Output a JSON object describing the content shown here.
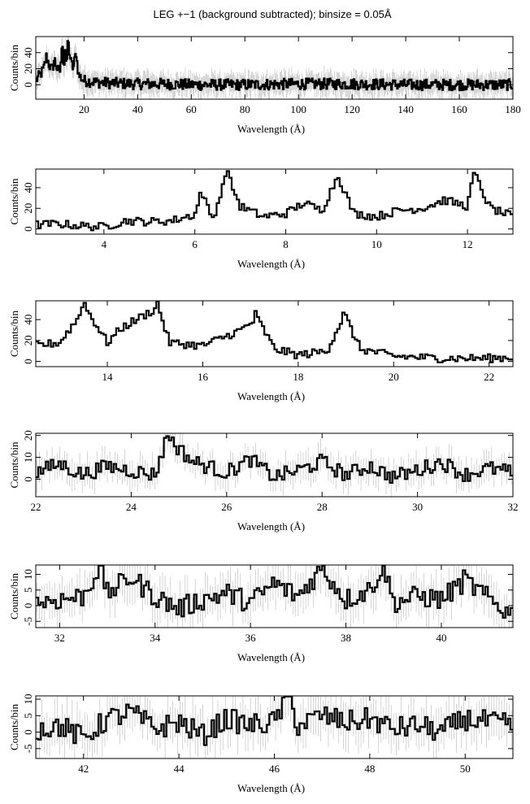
{
  "figure": {
    "title": "LEG +−1 (background subtracted); binsize = 0.05Å"
  },
  "chart_data": [
    {
      "type": "line",
      "panel": 1,
      "xlabel": "Wavelength (Å)",
      "ylabel": "Counts/bin",
      "xlim": [
        2,
        180
      ],
      "ylim": [
        -18,
        60
      ],
      "xticks": [
        20,
        40,
        60,
        80,
        100,
        120,
        140,
        160,
        180
      ],
      "yticks": [
        0,
        20,
        40
      ],
      "style": "step histogram with gray error bars",
      "series": [
        {
          "x": [
            2,
            4,
            5,
            6,
            7,
            8,
            9,
            10,
            11,
            12,
            12.5,
            13,
            13.5,
            14,
            15,
            16,
            17,
            18,
            20,
            25,
            30,
            40,
            50,
            60,
            80,
            100,
            120,
            140,
            160,
            170,
            175,
            178,
            180
          ],
          "values": [
            5,
            14,
            20,
            35,
            25,
            18,
            30,
            20,
            15,
            52,
            20,
            45,
            18,
            55,
            30,
            20,
            40,
            12,
            5,
            3,
            2,
            1,
            1,
            0,
            0,
            1,
            1,
            0,
            0,
            0,
            0,
            0,
            0
          ]
        }
      ]
    },
    {
      "type": "line",
      "panel": 2,
      "xlabel": "Wavelength (Å)",
      "ylabel": "Counts/bin",
      "xlim": [
        2.5,
        13
      ],
      "ylim": [
        -5,
        58
      ],
      "xticks": [
        4,
        6,
        8,
        10,
        12
      ],
      "yticks": [
        0,
        20,
        40
      ],
      "style": "step histogram",
      "series": [
        {
          "x": [
            2.5,
            3,
            3.5,
            4,
            4.5,
            5,
            5.5,
            6,
            6.15,
            6.4,
            6.65,
            6.7,
            7,
            7.5,
            8,
            8.4,
            8.8,
            9.15,
            9.5,
            10,
            10.5,
            11,
            11.5,
            12,
            12.15,
            12.5,
            13
          ],
          "values": [
            4,
            5,
            3,
            2,
            8,
            7,
            8,
            14,
            34,
            10,
            45,
            55,
            22,
            12,
            15,
            25,
            18,
            52,
            15,
            12,
            18,
            20,
            28,
            22,
            54,
            20,
            12
          ]
        }
      ]
    },
    {
      "type": "line",
      "panel": 3,
      "xlabel": "Wavelength (Å)",
      "ylabel": "Counts/bin",
      "xlim": [
        12.5,
        22.5
      ],
      "ylim": [
        -5,
        58
      ],
      "xticks": [
        14,
        16,
        18,
        20,
        22
      ],
      "yticks": [
        0,
        20,
        40
      ],
      "style": "step histogram",
      "series": [
        {
          "x": [
            12.5,
            13,
            13.45,
            13.5,
            14,
            14.3,
            15,
            15.05,
            15.3,
            16,
            16.8,
            17.05,
            17.1,
            17.5,
            18,
            18.6,
            18.97,
            19.3,
            20,
            21,
            22,
            22.5
          ],
          "values": [
            15,
            18,
            45,
            55,
            18,
            32,
            50,
            56,
            18,
            15,
            30,
            38,
            45,
            12,
            6,
            10,
            45,
            12,
            5,
            3,
            3,
            4
          ]
        }
      ]
    },
    {
      "type": "line",
      "panel": 4,
      "xlabel": "Wavelength (Å)",
      "ylabel": "Counts/bin",
      "xlim": [
        22,
        32
      ],
      "ylim": [
        -8,
        21
      ],
      "xticks": [
        22,
        24,
        26,
        28,
        30,
        32
      ],
      "yticks": [
        0,
        10,
        20
      ],
      "style": "step histogram with gray error bars",
      "series": [
        {
          "x": [
            22,
            22.5,
            23,
            23.5,
            24,
            24.5,
            24.78,
            24.9,
            25.3,
            26,
            26.5,
            27,
            27.5,
            28,
            28.5,
            29,
            29.5,
            30,
            30.5,
            31,
            31.5,
            32
          ],
          "values": [
            3,
            7,
            2,
            6,
            4,
            2,
            21,
            16,
            8,
            3,
            9,
            1,
            4,
            8,
            2,
            6,
            1,
            4,
            8,
            2,
            5,
            3
          ]
        }
      ]
    },
    {
      "type": "line",
      "panel": 5,
      "xlabel": "Wavelength (Å)",
      "ylabel": "Counts/bin",
      "xlim": [
        31.5,
        41.5
      ],
      "ylim": [
        -7,
        13
      ],
      "xticks": [
        32,
        34,
        36,
        38,
        40
      ],
      "yticks": [
        -5,
        0,
        5,
        10
      ],
      "style": "step histogram with gray error bars",
      "series": [
        {
          "x": [
            31.5,
            32,
            32.5,
            32.85,
            33,
            33.5,
            34,
            34.5,
            35,
            35.5,
            36,
            36.5,
            37,
            37.5,
            38,
            38.5,
            38.8,
            39,
            39.5,
            40,
            40.5,
            41,
            41.5
          ],
          "values": [
            1,
            2,
            3,
            13,
            4,
            9,
            3,
            -1,
            2,
            4,
            1,
            7,
            3,
            12,
            2,
            5,
            13,
            1,
            3,
            2,
            8,
            2,
            -3
          ]
        }
      ]
    },
    {
      "type": "line",
      "panel": 6,
      "xlabel": "Wavelength (Å)",
      "ylabel": "Counts/bin",
      "xlim": [
        41,
        51
      ],
      "ylim": [
        -8,
        11
      ],
      "xticks": [
        42,
        44,
        46,
        48,
        50
      ],
      "yticks": [
        -5,
        0,
        5,
        10
      ],
      "style": "step histogram with gray error bars",
      "series": [
        {
          "x": [
            41,
            41.5,
            42,
            42.5,
            43,
            43.5,
            44,
            44.5,
            45,
            45.5,
            46,
            46.3,
            46.5,
            47,
            47.5,
            48,
            48.5,
            49,
            49.5,
            50,
            50.5,
            51
          ],
          "values": [
            1,
            2,
            -2,
            4,
            6,
            1,
            3,
            -1,
            4,
            2,
            3,
            11,
            2,
            5,
            3,
            4,
            1,
            2,
            0,
            4,
            3,
            2
          ]
        }
      ]
    }
  ]
}
